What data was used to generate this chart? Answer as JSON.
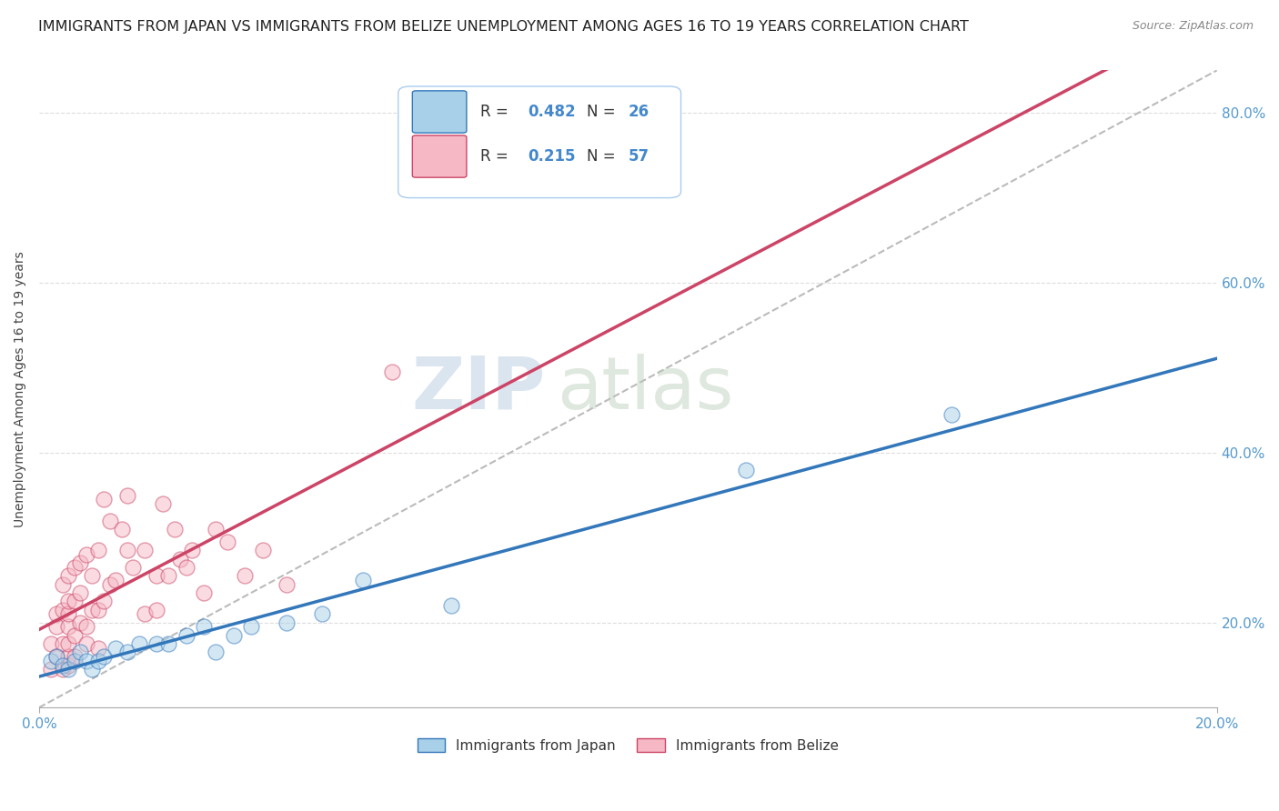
{
  "title": "IMMIGRANTS FROM JAPAN VS IMMIGRANTS FROM BELIZE UNEMPLOYMENT AMONG AGES 16 TO 19 YEARS CORRELATION CHART",
  "source": "Source: ZipAtlas.com",
  "ylabel": "Unemployment Among Ages 16 to 19 years",
  "xlim": [
    0.0,
    0.2
  ],
  "ylim": [
    0.1,
    0.85
  ],
  "yticks": [
    0.2,
    0.4,
    0.6,
    0.8
  ],
  "ytick_labels": [
    "20.0%",
    "40.0%",
    "60.0%",
    "80.0%"
  ],
  "watermark_zip": "ZIP",
  "watermark_atlas": "atlas",
  "japan_color": "#A8D0E8",
  "belize_color": "#F5B8C4",
  "japan_line_color": "#3377BB",
  "belize_line_color": "#CC4466",
  "japan_x": [
    0.002,
    0.003,
    0.004,
    0.005,
    0.006,
    0.007,
    0.008,
    0.009,
    0.01,
    0.011,
    0.013,
    0.015,
    0.017,
    0.02,
    0.022,
    0.025,
    0.028,
    0.03,
    0.033,
    0.036,
    0.042,
    0.048,
    0.055,
    0.07,
    0.12,
    0.155
  ],
  "japan_y": [
    0.155,
    0.16,
    0.15,
    0.145,
    0.155,
    0.165,
    0.155,
    0.145,
    0.155,
    0.16,
    0.17,
    0.165,
    0.175,
    0.175,
    0.175,
    0.185,
    0.195,
    0.165,
    0.185,
    0.195,
    0.2,
    0.21,
    0.25,
    0.22,
    0.38,
    0.445
  ],
  "belize_x": [
    0.002,
    0.002,
    0.003,
    0.003,
    0.003,
    0.004,
    0.004,
    0.004,
    0.004,
    0.005,
    0.005,
    0.005,
    0.005,
    0.005,
    0.005,
    0.005,
    0.006,
    0.006,
    0.006,
    0.006,
    0.007,
    0.007,
    0.007,
    0.008,
    0.008,
    0.008,
    0.009,
    0.009,
    0.01,
    0.01,
    0.01,
    0.011,
    0.011,
    0.012,
    0.012,
    0.013,
    0.014,
    0.015,
    0.015,
    0.016,
    0.018,
    0.018,
    0.02,
    0.02,
    0.021,
    0.022,
    0.023,
    0.024,
    0.025,
    0.026,
    0.028,
    0.03,
    0.032,
    0.035,
    0.038,
    0.042,
    0.06
  ],
  "belize_y": [
    0.145,
    0.175,
    0.16,
    0.195,
    0.21,
    0.145,
    0.175,
    0.215,
    0.245,
    0.15,
    0.16,
    0.175,
    0.195,
    0.21,
    0.225,
    0.255,
    0.16,
    0.185,
    0.225,
    0.265,
    0.2,
    0.235,
    0.27,
    0.175,
    0.195,
    0.28,
    0.215,
    0.255,
    0.17,
    0.215,
    0.285,
    0.225,
    0.345,
    0.245,
    0.32,
    0.25,
    0.31,
    0.285,
    0.35,
    0.265,
    0.21,
    0.285,
    0.215,
    0.255,
    0.34,
    0.255,
    0.31,
    0.275,
    0.265,
    0.285,
    0.235,
    0.31,
    0.295,
    0.255,
    0.285,
    0.245,
    0.495
  ],
  "background_color": "#FFFFFF",
  "grid_color": "#DDDDDD",
  "title_fontsize": 11.5,
  "axis_fontsize": 11,
  "dot_size": 150,
  "dot_alpha": 0.5,
  "dot_linewidth": 1.0
}
